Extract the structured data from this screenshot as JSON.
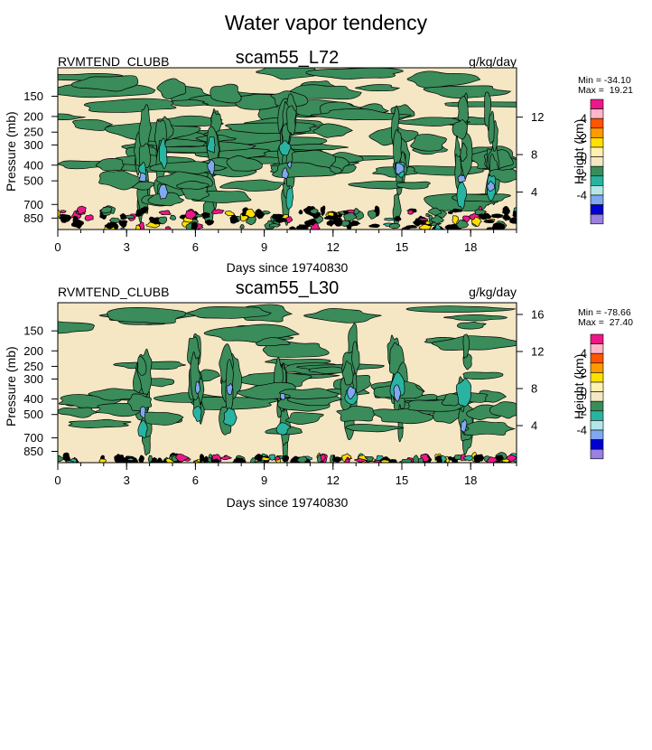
{
  "figure": {
    "title": "Water vapor tendency"
  },
  "chart_data": [
    {
      "type": "heatmap",
      "variable": "RVMTEND_CLUBB",
      "title": "scam55_L72",
      "units": "g/kg/day",
      "xlabel": "Days since 19740830",
      "ylabel": "Pressure (mb)",
      "y2label": "Height (km)",
      "xlim": [
        0,
        20
      ],
      "x_ticks": [
        0,
        3,
        6,
        9,
        12,
        15,
        18
      ],
      "y_scale": "log-pressure",
      "ylim": [
        1000,
        100
      ],
      "y_ticks": [
        150,
        200,
        250,
        300,
        400,
        500,
        700,
        850
      ],
      "y2_ticks": [
        4,
        8,
        12
      ],
      "min_label": "Min = -34.10",
      "max_label": "Max =  19.21",
      "colorbar": {
        "labels": [
          "4",
          "2",
          "0",
          "-2",
          "-4"
        ],
        "colors": [
          "#ee1788",
          "#ffb6c8",
          "#ff5500",
          "#ff9a00",
          "#ffe000",
          "#fff0b0",
          "#f5e6c4",
          "#3a8c5a",
          "#28b4a0",
          "#b4e6e6",
          "#7fa8f0",
          "#0000d0",
          "#9a80e0"
        ]
      }
    },
    {
      "type": "heatmap",
      "variable": "RVMTEND_CLUBB",
      "title": "scam55_L30",
      "units": "g/kg/day",
      "xlabel": "Days since 19740830",
      "ylabel": "Pressure (mb)",
      "y2label": "Height (km)",
      "xlim": [
        0,
        20
      ],
      "x_ticks": [
        0,
        3,
        6,
        9,
        12,
        15,
        18
      ],
      "y_scale": "log-pressure",
      "ylim": [
        1000,
        100
      ],
      "y_ticks": [
        150,
        200,
        250,
        300,
        400,
        500,
        700,
        850
      ],
      "y2_ticks": [
        4,
        8,
        12,
        16
      ],
      "min_label": "Min = -78.66",
      "max_label": "Max =  27.40",
      "colorbar": {
        "labels": [
          "4",
          "2",
          "0",
          "-2",
          "-4"
        ],
        "colors": [
          "#ee1788",
          "#ffb6c8",
          "#ff5500",
          "#ff9a00",
          "#ffe000",
          "#fff0b0",
          "#f5e6c4",
          "#3a8c5a",
          "#28b4a0",
          "#b4e6e6",
          "#7fa8f0",
          "#0000d0",
          "#9a80e0"
        ]
      }
    }
  ]
}
